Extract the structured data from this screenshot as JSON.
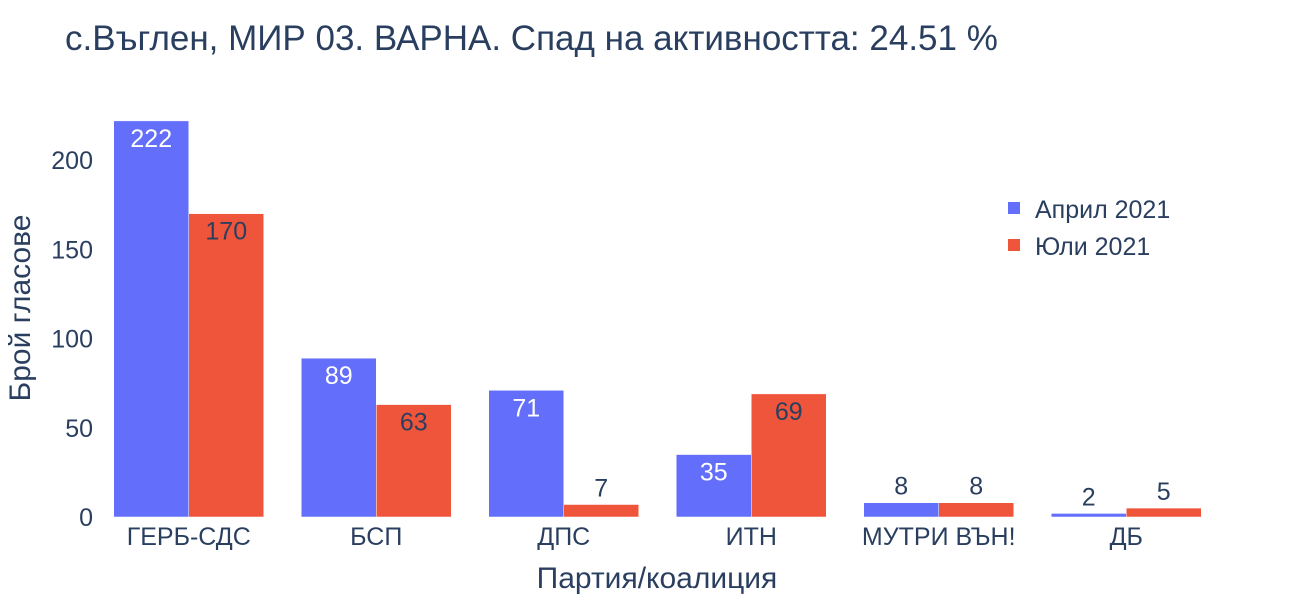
{
  "chart_data": {
    "type": "bar",
    "title": "с.Въглен, МИР 03. ВАРНА. Спад на активността: 24.51 %",
    "xlabel": "Партия/коалиция",
    "ylabel": "Брой гласове",
    "categories": [
      "ГЕРБ-СДС",
      "БСП",
      "ДПС",
      "ИТН",
      "МУТРИ ВЪН!",
      "ДБ"
    ],
    "series": [
      {
        "name": "Април 2021",
        "color": "#636efa",
        "values": [
          222,
          89,
          71,
          35,
          8,
          2
        ]
      },
      {
        "name": "Юли 2021",
        "color": "#ef553b",
        "values": [
          170,
          63,
          7,
          69,
          8,
          5
        ]
      }
    ],
    "ylim": [
      0,
      233.7
    ],
    "yticks": [
      0,
      50,
      100,
      150,
      200
    ],
    "grid": false,
    "legend_position": "top-right",
    "text_color": "#2a3f5f"
  }
}
